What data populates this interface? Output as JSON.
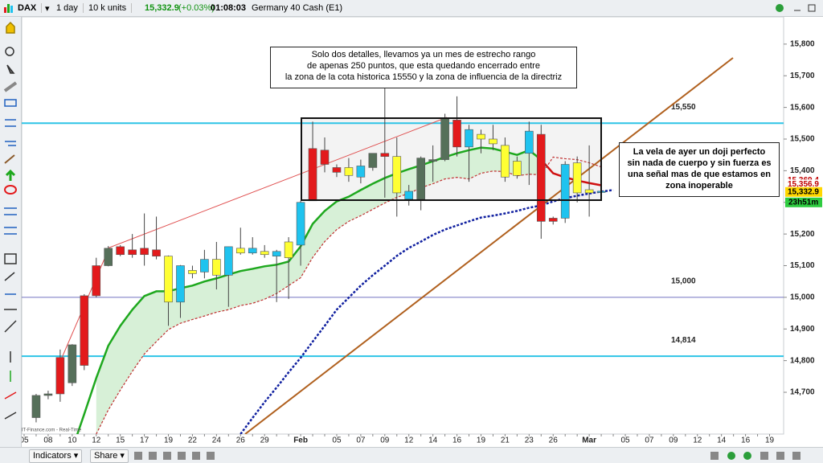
{
  "header": {
    "instrument": "DAX",
    "timeframe": "1 day",
    "size": "10 k units",
    "price": "15,332.9",
    "change": "(+0.03%)",
    "time": "01:08:03",
    "name": "Germany 40 Cash (E1)"
  },
  "toolbar": {
    "indicators": "Indicators",
    "share": "Share"
  },
  "watermark": "IT-Finance.com - Real-Time",
  "annotations": [
    [
      "Solo dos detalles, llevamos ya un mes de estrecho rango",
      "de apenas 250 puntos, que esta quedando encerrado entre",
      "la zona de la cota historica 15550 y la zona de influencia de la directriz"
    ],
    [
      "La vela de ayer un doji perfecto",
      "sin nada de cuerpo y sin fuerza es",
      "una señal mas de que estamos en",
      "zona inoperable"
    ]
  ],
  "chart_data": {
    "type": "candlestick",
    "categories": [
      "05",
      null,
      "08",
      null,
      "10",
      null,
      "12",
      null,
      "15",
      null,
      "17",
      null,
      "19",
      null,
      "22",
      null,
      "24",
      null,
      "26",
      null,
      "29",
      null,
      null,
      "Feb",
      null,
      null,
      "05",
      null,
      "07",
      null,
      "09",
      null,
      "12",
      null,
      "14",
      null,
      "16",
      null,
      "19",
      null,
      "21",
      null,
      "23",
      null,
      "26",
      null,
      null,
      "Mar",
      null,
      null,
      "05",
      null,
      "07",
      null,
      "09",
      null,
      "12",
      null,
      "14",
      null,
      "16",
      null,
      "19"
    ],
    "open": [
      null,
      14620,
      14690,
      14695,
      14730,
      14785,
      15005,
      15100,
      15160,
      15150,
      15155,
      15150,
      15130,
      14985,
      15085,
      15080,
      15120,
      15070,
      15155,
      15140,
      15145,
      15130,
      15175,
      15165,
      15305,
      15420,
      15395,
      15410,
      15380,
      15410,
      15445,
      15445,
      15310,
      15310,
      15435,
      15435,
      15560,
      15475,
      15515,
      15500,
      15480,
      15430,
      15455,
      15515,
      15250,
      15250,
      15425,
      15340,
      15335,
      null,
      null,
      null,
      null,
      null,
      null,
      null,
      null,
      null,
      null,
      null,
      null,
      null,
      null
    ],
    "high": [
      null,
      14695,
      14705,
      14835,
      14852,
      15010,
      15125,
      15162,
      15165,
      15200,
      15265,
      15255,
      15132,
      15102,
      15100,
      15150,
      15175,
      15160,
      15220,
      15190,
      15165,
      15150,
      15190,
      15305,
      15555,
      15505,
      15420,
      15440,
      15435,
      15455,
      15660,
      15505,
      15355,
      15445,
      15480,
      15580,
      15635,
      15545,
      15530,
      15545,
      15505,
      15445,
      15555,
      15545,
      15255,
      15430,
      15445,
      15480,
      15350,
      null,
      null,
      null,
      null,
      null,
      null,
      null,
      null,
      null,
      null,
      null,
      null,
      null,
      null
    ],
    "low": [
      null,
      14605,
      14678,
      14670,
      14720,
      14770,
      15000,
      15098,
      15130,
      15125,
      15100,
      15120,
      14910,
      14935,
      15060,
      15060,
      15025,
      14970,
      15135,
      15135,
      15125,
      14985,
      14995,
      15100,
      15305,
      15395,
      15380,
      15365,
      15360,
      15400,
      15315,
      15255,
      15290,
      15275,
      15365,
      15430,
      15445,
      15365,
      15455,
      15465,
      15365,
      15375,
      15355,
      15185,
      15230,
      15235,
      15300,
      15255,
      15318,
      null,
      null,
      null,
      null,
      null,
      null,
      null,
      null,
      null,
      null,
      null,
      null,
      null,
      null
    ],
    "close": [
      null,
      14690,
      14695,
      14810,
      14850,
      15005,
      15100,
      15155,
      15135,
      15135,
      15135,
      15130,
      14985,
      15100,
      15075,
      15120,
      15070,
      15160,
      15140,
      15155,
      15135,
      15145,
      15125,
      15300,
      15470,
      15465,
      15410,
      15385,
      15415,
      15455,
      15455,
      15330,
      15335,
      15440,
      15430,
      15565,
      15475,
      15530,
      15500,
      15485,
      15380,
      15385,
      15525,
      15240,
      15240,
      15420,
      15330,
      15330,
      15332.9,
      null,
      null,
      null,
      null,
      null,
      null,
      null,
      null,
      null,
      null,
      null,
      null,
      null,
      null
    ],
    "candle_colors": [
      null,
      "#56705a",
      "#56705a",
      "#e31a1c",
      "#56705a",
      "#e31a1c",
      "#e31a1c",
      "#56705a",
      "#e31a1c",
      "#e31a1c",
      "#e31a1c",
      "#e31a1c",
      "#ffff33",
      "#1fc3ef",
      "#ffff33",
      "#1fc3ef",
      "#ffff33",
      "#1fc3ef",
      "#ffff33",
      "#1fc3ef",
      "#ffff33",
      "#1fc3ef",
      "#ffff33",
      "#1fc3ef",
      "#e31a1c",
      "#e31a1c",
      "#e31a1c",
      "#ffff33",
      "#1fc3ef",
      "#56705a",
      "#e31a1c",
      "#ffff33",
      "#1fc3ef",
      "#56705a",
      "#56705a",
      "#56705a",
      "#e31a1c",
      "#1fc3ef",
      "#ffff33",
      "#ffff33",
      "#ffff33",
      "#ffff33",
      "#1fc3ef",
      "#e31a1c",
      "#e31a1c",
      "#1fc3ef",
      "#ffff33",
      "#ffff33",
      "#1fc3ef",
      null,
      null,
      null,
      null,
      null,
      null,
      null,
      null,
      null,
      null,
      null,
      null,
      null,
      null
    ],
    "indicators": [
      {
        "color": "#1ea81e",
        "style": "solid",
        "values": [
          null,
          null,
          null,
          null,
          14520,
          14631,
          14745,
          14847,
          14910,
          14961,
          15004,
          15019,
          15019,
          15029,
          15037,
          15050,
          15060,
          15072,
          15083,
          15090,
          15098,
          15103,
          15113,
          15161,
          15232,
          15273,
          15303,
          15318,
          15339,
          15359,
          15377,
          15392,
          15405,
          15417,
          15430,
          15443,
          15455,
          15465,
          15473,
          15470,
          15460,
          15450,
          15465,
          15435,
          null,
          null,
          null,
          null,
          null,
          null,
          null,
          null,
          null,
          null,
          null,
          null,
          null,
          null,
          null,
          null,
          null,
          null,
          null
        ]
      },
      {
        "color": "#d01010",
        "style": "solid",
        "values": [
          null,
          null,
          null,
          null,
          null,
          null,
          null,
          null,
          null,
          null,
          null,
          null,
          null,
          null,
          null,
          null,
          null,
          null,
          null,
          null,
          null,
          null,
          null,
          null,
          null,
          null,
          null,
          null,
          null,
          null,
          null,
          null,
          null,
          null,
          null,
          null,
          null,
          null,
          null,
          null,
          null,
          null,
          null,
          15435,
          15392,
          15379,
          15369,
          15361,
          15354,
          null,
          null,
          null,
          null,
          null,
          null,
          null,
          null,
          null,
          null,
          null,
          null,
          null,
          null
        ]
      },
      {
        "color": "#c03030",
        "style": "dotted",
        "values": [
          null,
          null,
          null,
          null,
          null,
          null,
          14568,
          14644,
          14707,
          14766,
          14821,
          14860,
          14898,
          14918,
          14930,
          14941,
          14953,
          14961,
          14974,
          14981,
          14994,
          15012,
          15037,
          15062,
          15126,
          15176,
          15214,
          15240,
          15258,
          15278,
          15298,
          15316,
          15328,
          15346,
          15359,
          15374,
          15379,
          15374,
          15392,
          15399,
          15397,
          15384,
          15389,
          15387,
          15443,
          15438,
          15435,
          15425,
          15412,
          null,
          null,
          null,
          null,
          null,
          null,
          null,
          null,
          null,
          null,
          null,
          null,
          null,
          null
        ]
      },
      {
        "color": "#1020a0",
        "style": "dotted",
        "values": [
          null,
          null,
          null,
          null,
          null,
          null,
          null,
          null,
          null,
          null,
          null,
          null,
          null,
          null,
          null,
          null,
          null,
          null,
          14568,
          14619,
          14669,
          14715,
          14763,
          14809,
          14860,
          14910,
          14961,
          14999,
          15037,
          15070,
          15100,
          15131,
          15156,
          15176,
          15197,
          15214,
          15227,
          15240,
          15252,
          15258,
          15265,
          15273,
          15283,
          15290,
          15303,
          15313,
          15321,
          15328,
          15334,
          15339,
          null,
          null,
          null,
          null,
          null,
          null,
          null,
          null,
          null,
          null,
          null,
          null,
          null
        ]
      }
    ],
    "band_color": "#d7f0d7",
    "hlines": [
      {
        "value": 15550,
        "label": "15,550",
        "color": "#2ec4e6"
      },
      {
        "value": 15000,
        "label": "15,000",
        "color": "#7070c0"
      },
      {
        "value": 14814,
        "label": "14,814",
        "color": "#2ec4e6"
      }
    ],
    "price_tags": [
      {
        "value": 15369.4,
        "label": "15,369.4",
        "color": "#c00000",
        "background": "#ffffff"
      },
      {
        "value": 15356.9,
        "label": "15,356.9",
        "color": "#c00000",
        "background": "#ffffff"
      },
      {
        "value": 15332.9,
        "label": "15,332.9",
        "color": "#000000",
        "background": "#ffd700"
      }
    ],
    "countdown": "23h51m",
    "ylim": [
      14568,
      15886
    ],
    "yticks": [
      {
        "value": 14700,
        "label": "14,700"
      },
      {
        "value": 14800,
        "label": "14,800"
      },
      {
        "value": 14900,
        "label": "14,900"
      },
      {
        "value": 15000,
        "label": "15,000"
      },
      {
        "value": 15100,
        "label": "15,100"
      },
      {
        "value": 15200,
        "label": "15,200"
      },
      {
        "value": 15300,
        "label": "15,300"
      },
      {
        "value": 15400,
        "label": "15,400"
      },
      {
        "value": 15500,
        "label": "15,500"
      },
      {
        "value": 15600,
        "label": "15,600"
      },
      {
        "value": 15700,
        "label": "15,700"
      },
      {
        "value": 15800,
        "label": "15,800"
      }
    ]
  }
}
